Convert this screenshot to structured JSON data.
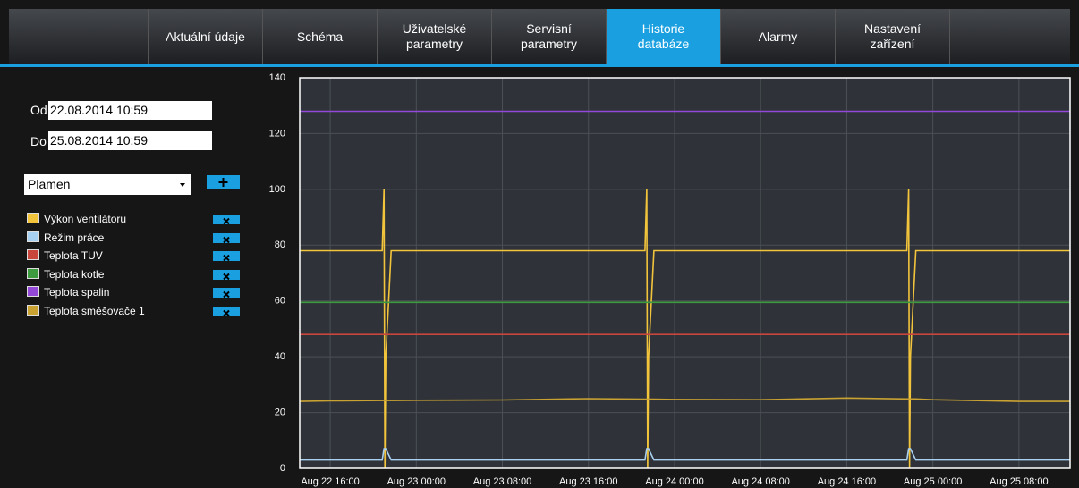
{
  "nav": {
    "tabs": [
      "Aktuální údaje",
      "Schéma",
      "Uživatelské parametry",
      "Servisní parametry",
      "Historie databáze",
      "Alarmy",
      "Nastavení zařízení"
    ],
    "active": 4
  },
  "filter": {
    "from_label": "Od",
    "from": "22.08.2014 10:59",
    "to_label": "Do",
    "to": "25.08.2014 10:59",
    "select": "Plamen"
  },
  "chart_data": {
    "type": "line",
    "x": [
      "Aug 22 13:10",
      "Aug 22 16:00",
      "Aug 22 20:50",
      "Aug 22 21:00",
      "Aug 22 21:05",
      "Aug 22 21:10",
      "Aug 22 21:40",
      "Aug 22 22:00",
      "Aug 23 00:00",
      "Aug 23 08:00",
      "Aug 23 16:00",
      "Aug 23 21:15",
      "Aug 23 21:25",
      "Aug 23 21:30",
      "Aug 23 21:35",
      "Aug 23 22:05",
      "Aug 24 00:00",
      "Aug 24 08:00",
      "Aug 24 16:00",
      "Aug 24 21:35",
      "Aug 24 21:45",
      "Aug 24 21:50",
      "Aug 24 21:55",
      "Aug 24 22:25",
      "Aug 25 00:00",
      "Aug 25 08:00",
      "Aug 25 12:45"
    ],
    "series": [
      {
        "name": "Výkon ventilátoru",
        "color": "#f2c43c",
        "values": [
          78,
          78,
          78,
          100,
          0,
          40,
          78,
          78,
          78,
          78,
          78,
          78,
          100,
          0,
          40,
          78,
          78,
          78,
          78,
          78,
          100,
          0,
          40,
          78,
          78,
          78,
          78
        ]
      },
      {
        "name": "Režim práce",
        "color": "#a8d0f0",
        "values": [
          3,
          3,
          3,
          7,
          7,
          7,
          3,
          3,
          3,
          3,
          3,
          3,
          7,
          7,
          7,
          3,
          3,
          3,
          3,
          3,
          7,
          7,
          7,
          3,
          3,
          3,
          3
        ]
      },
      {
        "name": "Teplota TUV",
        "color": "#c8463c",
        "values": [
          48,
          48,
          48,
          48,
          48,
          48,
          48,
          48,
          48,
          48,
          48,
          48,
          48,
          48,
          48,
          48,
          48,
          48,
          48,
          48,
          48,
          48,
          48,
          48,
          48,
          48,
          48
        ]
      },
      {
        "name": "Teplota kotle",
        "color": "#3e9a3e",
        "values": [
          59.5,
          59.5,
          59.5,
          59.5,
          59.5,
          59.5,
          59.5,
          59.5,
          59.5,
          59.5,
          59.5,
          59.5,
          59.5,
          59.5,
          59.5,
          59.5,
          59.5,
          59.5,
          59.5,
          59.5,
          59.5,
          59.5,
          59.5,
          59.5,
          59.5,
          59.5,
          59.5
        ]
      },
      {
        "name": "Teplota spalin",
        "color": "#9448d8",
        "values": [
          128,
          128,
          128,
          128,
          128,
          128,
          128,
          128,
          128,
          128,
          128,
          128,
          128,
          128,
          128,
          128,
          128,
          128,
          128,
          128,
          128,
          128,
          128,
          128,
          128,
          128,
          128
        ]
      },
      {
        "name": "Teplota směšovače 1",
        "color": "#c9a232",
        "values": [
          24,
          24.2,
          24.3,
          24.3,
          24.3,
          24.3,
          24.3,
          24.3,
          24.4,
          24.5,
          25,
          24.8,
          24.8,
          24.8,
          24.8,
          24.8,
          24.7,
          24.6,
          25.2,
          24.9,
          24.9,
          24.9,
          24.9,
          24.9,
          24.6,
          24,
          24
        ]
      }
    ],
    "xlim": [
      "Aug 22 13:10",
      "Aug 25 12:45"
    ],
    "xticks": [
      "Aug 22 16:00",
      "Aug 23 00:00",
      "Aug 23 08:00",
      "Aug 23 16:00",
      "Aug 24 00:00",
      "Aug 24 08:00",
      "Aug 24 16:00",
      "Aug 25 00:00",
      "Aug 25 08:00"
    ],
    "ylim": [
      0,
      140
    ],
    "yticks": [
      0,
      20,
      40,
      60,
      80,
      100,
      120,
      140
    ],
    "grid": true
  }
}
